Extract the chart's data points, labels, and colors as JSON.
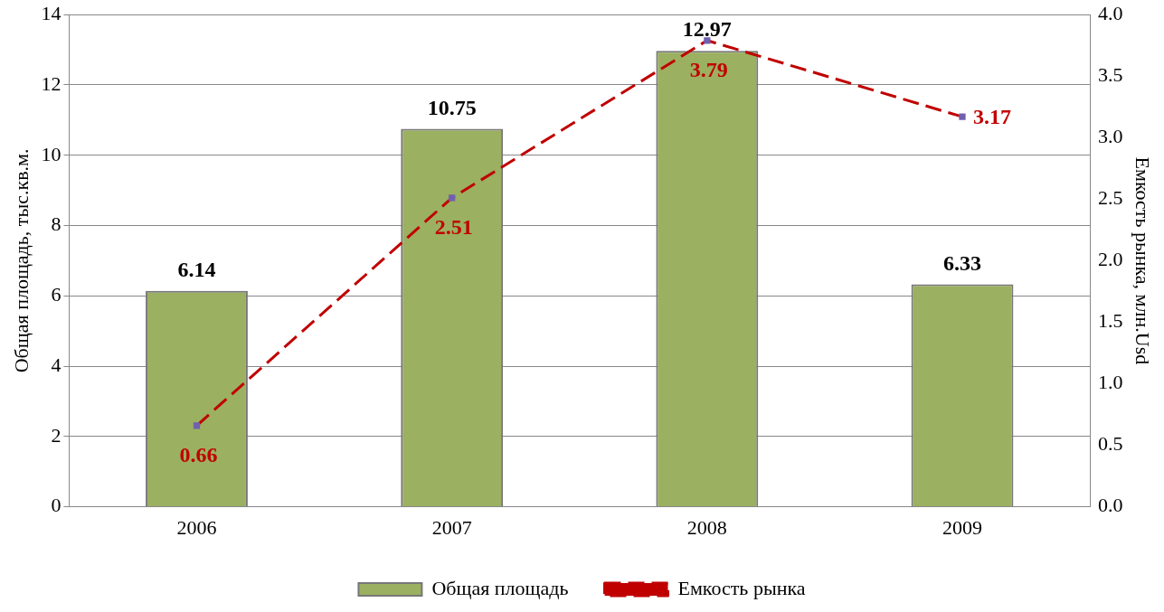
{
  "chart_data": {
    "type": "bar",
    "categories": [
      "2006",
      "2007",
      "2008",
      "2009"
    ],
    "series": [
      {
        "name": "Общая площадь",
        "color": "#9bb060",
        "values": [
          6.14,
          10.75,
          12.97,
          6.33
        ]
      },
      {
        "name": "Емкость рынка",
        "type": "line",
        "axis": "y2",
        "color": "#c00000",
        "line_style": "dashed",
        "marker": "square",
        "values": [
          0.66,
          2.51,
          3.79,
          3.17
        ]
      }
    ],
    "ylabel": "Общая площадь, тыс.кв.м.",
    "y2label": "Емкость рынка, млн.Usd",
    "ylim": [
      0,
      14
    ],
    "yticks": [
      0,
      2,
      4,
      6,
      8,
      10,
      12,
      14
    ],
    "y2lim": [
      0,
      4
    ],
    "y2ticks": [
      {
        "value": 0,
        "label": "0.0"
      },
      0.5,
      {
        "value": 1,
        "label": "1.0"
      },
      1.5,
      {
        "value": 2,
        "label": "2.0"
      },
      2.5,
      {
        "value": 3,
        "label": "3.0"
      },
      3.5,
      {
        "value": 4,
        "label": "4.0"
      }
    ],
    "grid": "y",
    "legend": "bottom",
    "data_labels": true
  }
}
